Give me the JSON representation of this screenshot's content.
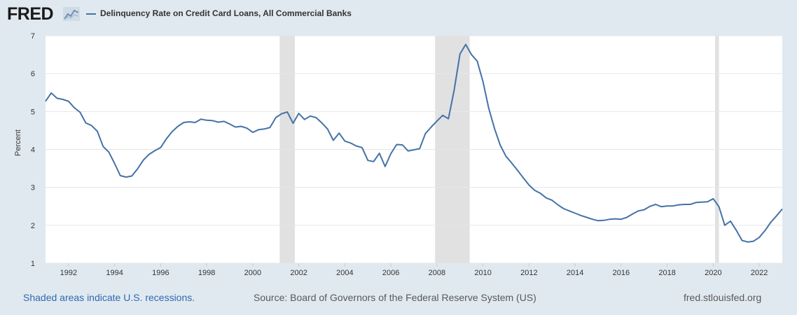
{
  "header": {
    "logo_text": "FRED",
    "logo_icon": "chart-line-icon",
    "legend_label": "Delinquency Rate on Credit Card Loans, All Commercial Banks"
  },
  "footer": {
    "recessions_note": "Shaded areas indicate U.S. recessions.",
    "source": "Source: Board of Governors of the Federal Reserve System (US)",
    "site": "fred.stlouisfed.org"
  },
  "colors": {
    "background": "#e1e9f0",
    "plot_background": "#ffffff",
    "series": "#4572a7",
    "recession": "#e1e1e1",
    "grid": "#e6e6e6",
    "link": "#2e6ab1"
  },
  "chart_data": {
    "type": "line",
    "title": "",
    "xlabel": "",
    "ylabel": "Percent",
    "xlim": [
      1991.0,
      2023.0
    ],
    "ylim": [
      1,
      7
    ],
    "yticks": [
      1,
      2,
      3,
      4,
      5,
      6,
      7
    ],
    "xticks": [
      1992,
      1994,
      1996,
      1998,
      2000,
      2002,
      2004,
      2006,
      2008,
      2010,
      2012,
      2014,
      2016,
      2018,
      2020,
      2022
    ],
    "grid": true,
    "legend": "top-left",
    "recessions": [
      [
        2001.17,
        2001.83
      ],
      [
        2007.92,
        2009.42
      ],
      [
        2020.08,
        2020.25
      ]
    ],
    "series": [
      {
        "name": "Delinquency Rate on Credit Card Loans, All Commercial Banks",
        "x": [
          1991.0,
          1991.25,
          1991.5,
          1991.75,
          1992.0,
          1992.25,
          1992.5,
          1992.75,
          1993.0,
          1993.25,
          1993.5,
          1993.75,
          1994.0,
          1994.25,
          1994.5,
          1994.75,
          1995.0,
          1995.25,
          1995.5,
          1995.75,
          1996.0,
          1996.25,
          1996.5,
          1996.75,
          1997.0,
          1997.25,
          1997.5,
          1997.75,
          1998.0,
          1998.25,
          1998.5,
          1998.75,
          1999.0,
          1999.25,
          1999.5,
          1999.75,
          2000.0,
          2000.25,
          2000.5,
          2000.75,
          2001.0,
          2001.25,
          2001.5,
          2001.75,
          2002.0,
          2002.25,
          2002.5,
          2002.75,
          2003.0,
          2003.25,
          2003.5,
          2003.75,
          2004.0,
          2004.25,
          2004.5,
          2004.75,
          2005.0,
          2005.25,
          2005.5,
          2005.75,
          2006.0,
          2006.25,
          2006.5,
          2006.75,
          2007.0,
          2007.25,
          2007.5,
          2007.75,
          2008.0,
          2008.25,
          2008.5,
          2008.75,
          2009.0,
          2009.25,
          2009.5,
          2009.75,
          2010.0,
          2010.25,
          2010.5,
          2010.75,
          2011.0,
          2011.25,
          2011.5,
          2011.75,
          2012.0,
          2012.25,
          2012.5,
          2012.75,
          2013.0,
          2013.25,
          2013.5,
          2013.75,
          2014.0,
          2014.25,
          2014.5,
          2014.75,
          2015.0,
          2015.25,
          2015.5,
          2015.75,
          2016.0,
          2016.25,
          2016.5,
          2016.75,
          2017.0,
          2017.25,
          2017.5,
          2017.75,
          2018.0,
          2018.25,
          2018.5,
          2018.75,
          2019.0,
          2019.25,
          2019.5,
          2019.75,
          2020.0,
          2020.25,
          2020.5,
          2020.75,
          2021.0,
          2021.25,
          2021.5,
          2021.75,
          2022.0,
          2022.25,
          2022.5,
          2022.75,
          2023.0
        ],
        "values": [
          5.27,
          5.49,
          5.35,
          5.32,
          5.27,
          5.1,
          4.98,
          4.7,
          4.63,
          4.48,
          4.08,
          3.93,
          3.63,
          3.31,
          3.27,
          3.3,
          3.49,
          3.72,
          3.87,
          3.97,
          4.05,
          4.28,
          4.47,
          4.61,
          4.71,
          4.73,
          4.71,
          4.8,
          4.77,
          4.76,
          4.72,
          4.74,
          4.67,
          4.59,
          4.61,
          4.56,
          4.45,
          4.52,
          4.54,
          4.58,
          4.84,
          4.94,
          4.99,
          4.69,
          4.95,
          4.79,
          4.88,
          4.84,
          4.7,
          4.54,
          4.24,
          4.43,
          4.22,
          4.17,
          4.09,
          4.05,
          3.71,
          3.68,
          3.9,
          3.55,
          3.89,
          4.13,
          4.12,
          3.96,
          3.99,
          4.02,
          4.42,
          4.59,
          4.75,
          4.9,
          4.81,
          5.57,
          6.52,
          6.77,
          6.5,
          6.33,
          5.79,
          5.09,
          4.55,
          4.11,
          3.82,
          3.64,
          3.45,
          3.25,
          3.06,
          2.92,
          2.84,
          2.72,
          2.66,
          2.54,
          2.44,
          2.38,
          2.32,
          2.26,
          2.21,
          2.16,
          2.12,
          2.13,
          2.16,
          2.17,
          2.16,
          2.21,
          2.3,
          2.38,
          2.41,
          2.5,
          2.55,
          2.49,
          2.51,
          2.51,
          2.54,
          2.55,
          2.55,
          2.6,
          2.61,
          2.62,
          2.7,
          2.49,
          2.0,
          2.11,
          1.87,
          1.6,
          1.56,
          1.58,
          1.68,
          1.86,
          2.08,
          2.25,
          2.43
        ]
      }
    ]
  }
}
